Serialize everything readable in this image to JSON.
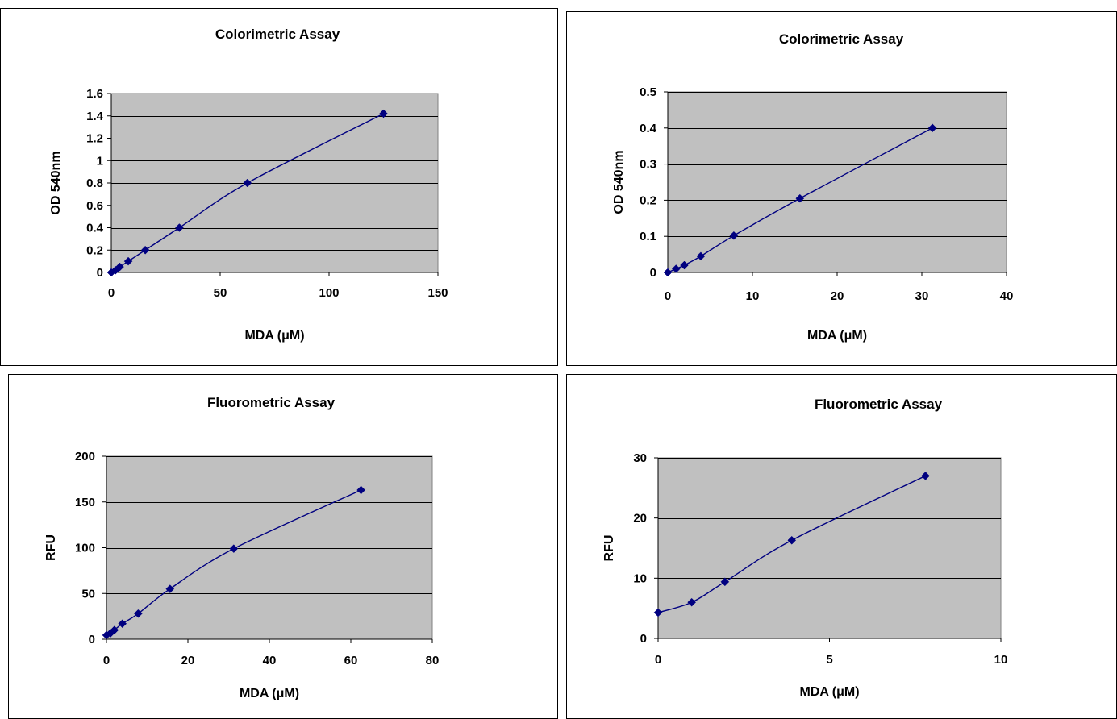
{
  "colors": {
    "plot_area": "#c0c0c0",
    "series": "#000080",
    "gridline": "#000000",
    "frame": "#000000"
  },
  "chart_data": [
    {
      "type": "line",
      "title": "Colorimetric Assay",
      "xlabel": "MDA (μM)",
      "ylabel": "OD 540nm",
      "xlim": [
        0,
        150
      ],
      "ylim": [
        0,
        1.6
      ],
      "xticks": [
        0,
        50,
        100,
        150
      ],
      "yticks": [
        0,
        0.2,
        0.4,
        0.6,
        0.8,
        1,
        1.2,
        1.4,
        1.6
      ],
      "xtick_labels": [
        "0",
        "50",
        "100",
        "150"
      ],
      "ytick_labels": [
        "0",
        "0.2",
        "0.4",
        "0.6",
        "0.8",
        "1",
        "1.2",
        "1.4",
        "1.6"
      ],
      "grid": true,
      "legend": "none",
      "x": [
        0,
        1.95,
        3.9,
        7.8,
        15.6,
        31.25,
        62.5,
        125
      ],
      "y": [
        0,
        0.02,
        0.05,
        0.1,
        0.2,
        0.4,
        0.8,
        1.42
      ]
    },
    {
      "type": "line",
      "title": "Colorimetric Assay",
      "xlabel": "MDA (μM)",
      "ylabel": "OD 540nm",
      "xlim": [
        0,
        40
      ],
      "ylim": [
        0,
        0.5
      ],
      "xticks": [
        0,
        10,
        20,
        30,
        40
      ],
      "yticks": [
        0,
        0.1,
        0.2,
        0.3,
        0.4,
        0.5
      ],
      "xtick_labels": [
        "0",
        "10",
        "20",
        "30",
        "40"
      ],
      "ytick_labels": [
        "0",
        "0.1",
        "0.2",
        "0.3",
        "0.4",
        "0.5"
      ],
      "grid": true,
      "legend": "none",
      "x": [
        0,
        0.98,
        1.95,
        3.9,
        7.8,
        15.6,
        31.25
      ],
      "y": [
        0,
        0.01,
        0.02,
        0.045,
        0.102,
        0.205,
        0.4
      ]
    },
    {
      "type": "line",
      "title": "Fluorometric Assay",
      "xlabel": "MDA (μM)",
      "ylabel": "RFU",
      "xlim": [
        0,
        80
      ],
      "ylim": [
        0,
        200
      ],
      "xticks": [
        0,
        20,
        40,
        60,
        80
      ],
      "yticks": [
        0,
        50,
        100,
        150,
        200
      ],
      "xtick_labels": [
        "0",
        "20",
        "40",
        "60",
        "80"
      ],
      "ytick_labels": [
        "0",
        "50",
        "100",
        "150",
        "200"
      ],
      "grid": true,
      "legend": "none",
      "x": [
        0,
        0.98,
        1.95,
        3.9,
        7.8,
        15.6,
        31.25,
        62.5
      ],
      "y": [
        4.5,
        6.5,
        10,
        17,
        28,
        55,
        99,
        163
      ]
    },
    {
      "type": "line",
      "title": "Fluorometric Assay",
      "xlabel": "MDA (μM)",
      "ylabel": "RFU",
      "xlim": [
        0,
        10
      ],
      "ylim": [
        0,
        30
      ],
      "xticks": [
        0,
        5,
        10
      ],
      "yticks": [
        0,
        10,
        20,
        30
      ],
      "xtick_labels": [
        "0",
        "5",
        "10"
      ],
      "ytick_labels": [
        "0",
        "10",
        "20",
        "30"
      ],
      "grid": true,
      "legend": "none",
      "x": [
        0,
        0.98,
        1.95,
        3.9,
        7.8
      ],
      "y": [
        4.3,
        6,
        9.4,
        16.3,
        27
      ]
    }
  ]
}
